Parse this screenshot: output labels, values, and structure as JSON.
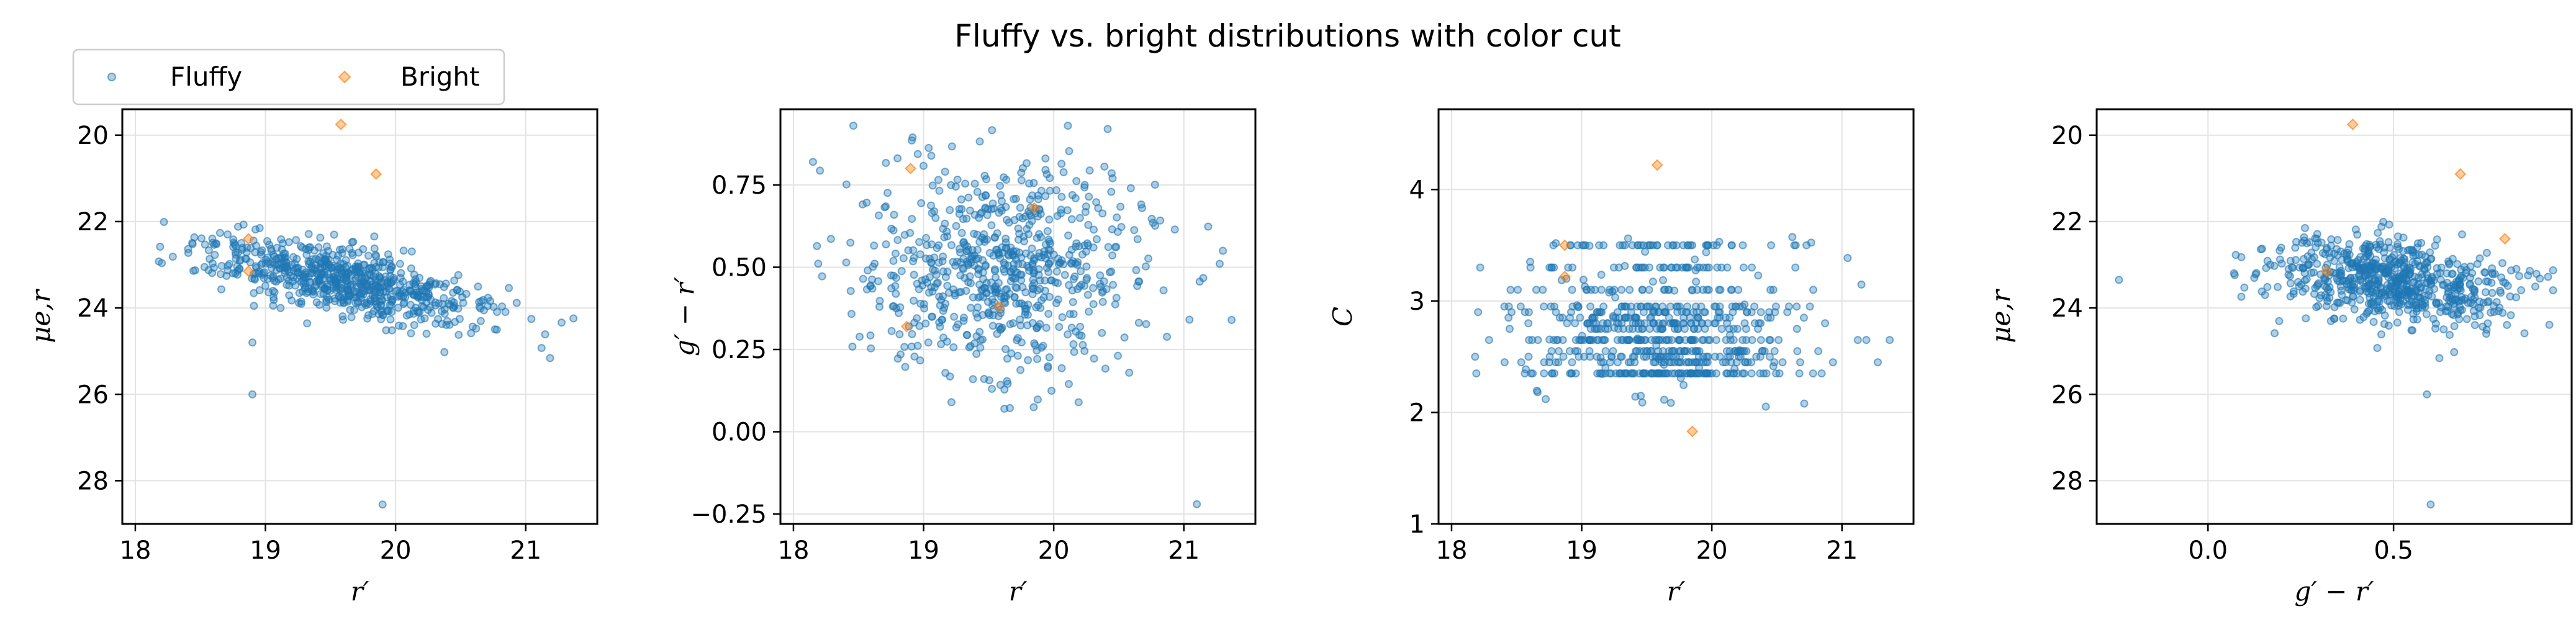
{
  "title": "Fluffy vs. bright distributions with color cut",
  "legend": {
    "placement": "top-left, outside above first panel",
    "entries": [
      {
        "label": "Fluffy",
        "marker": "circle",
        "color": "#1f77b4"
      },
      {
        "label": "Bright",
        "marker": "diamond",
        "color": "#ff7f0e"
      }
    ]
  },
  "colors": {
    "fluffy": "#1f77b4",
    "bright": "#ff7f0e",
    "grid": "#e3e3e3"
  },
  "chart_data": [
    {
      "type": "scatter",
      "panel": 1,
      "xlabel": "r′",
      "ylabel": "μe,r",
      "xlim": [
        17.9,
        21.55
      ],
      "ylim": [
        29.0,
        19.4
      ],
      "y_inverted": true,
      "xticks": [
        18,
        19,
        20,
        21
      ],
      "yticks": [
        20,
        22,
        24,
        26,
        28
      ],
      "grid": true,
      "series": [
        {
          "name": "Fluffy",
          "x_range": [
            18.1,
            21.4
          ],
          "y_trend": "23.0 at r′=19 to 24.3 at r′=21",
          "outliers": [
            [
              18.9,
              24.8
            ],
            [
              18.9,
              26.0
            ],
            [
              19.9,
              28.55
            ]
          ]
        },
        {
          "name": "Bright",
          "points": [
            [
              19.58,
              19.75
            ],
            [
              19.85,
              20.9
            ],
            [
              18.87,
              22.4
            ],
            [
              18.87,
              23.15
            ]
          ]
        }
      ]
    },
    {
      "type": "scatter",
      "panel": 2,
      "xlabel": "r′",
      "ylabel": "g′ − r′",
      "xlim": [
        17.9,
        21.55
      ],
      "ylim": [
        -0.28,
        0.98
      ],
      "xticks": [
        18,
        19,
        20,
        21
      ],
      "yticks": [
        -0.25,
        0.0,
        0.25,
        0.5,
        0.75
      ],
      "ytick_labels": [
        "−0.25",
        "0.00",
        "0.25",
        "0.50",
        "0.75"
      ],
      "grid": true,
      "series": [
        {
          "name": "Fluffy",
          "x_range": [
            18.1,
            21.4
          ],
          "y_range": [
            0.07,
            0.93
          ],
          "outliers": [
            [
              18.15,
              0.82
            ],
            [
              21.1,
              -0.22
            ],
            [
              21.3,
              0.55
            ]
          ]
        },
        {
          "name": "Bright",
          "points": [
            [
              18.9,
              0.8
            ],
            [
              18.87,
              0.32
            ],
            [
              19.85,
              0.68
            ],
            [
              19.58,
              0.38
            ]
          ]
        }
      ]
    },
    {
      "type": "scatter",
      "panel": 3,
      "xlabel": "r′",
      "ylabel": "C",
      "xlim": [
        17.9,
        21.55
      ],
      "ylim": [
        1.0,
        4.72
      ],
      "xticks": [
        18,
        19,
        20,
        21
      ],
      "yticks": [
        1,
        2,
        3,
        4
      ],
      "grid": true,
      "series": [
        {
          "name": "Fluffy",
          "x_range": [
            18.0,
            21.4
          ],
          "y_range": [
            1.9,
            4.2
          ],
          "note": "C values cluster on discrete levels 2.4–2.9"
        },
        {
          "name": "Bright",
          "points": [
            [
              19.58,
              4.22
            ],
            [
              18.87,
              3.5
            ],
            [
              18.87,
              3.22
            ],
            [
              19.85,
              1.83
            ]
          ]
        }
      ]
    },
    {
      "type": "scatter",
      "panel": 4,
      "xlabel": "g′ − r′",
      "ylabel": "μe,r",
      "xlim": [
        -0.3,
        0.98
      ],
      "ylim": [
        29.0,
        19.4
      ],
      "y_inverted": true,
      "xticks": [
        0.0,
        0.5
      ],
      "xtick_labels": [
        "0.0",
        "0.5"
      ],
      "yticks": [
        20,
        22,
        24,
        26,
        28
      ],
      "grid": true,
      "series": [
        {
          "name": "Fluffy",
          "x_range": [
            -0.24,
            0.93
          ],
          "y_range": [
            21.9,
            26.0
          ],
          "outliers": [
            [
              -0.24,
              23.35
            ],
            [
              0.59,
              26.0
            ],
            [
              0.6,
              28.55
            ]
          ]
        },
        {
          "name": "Bright",
          "points": [
            [
              0.39,
              19.75
            ],
            [
              0.68,
              20.9
            ],
            [
              0.8,
              22.4
            ],
            [
              0.32,
              23.15
            ]
          ]
        }
      ]
    }
  ]
}
